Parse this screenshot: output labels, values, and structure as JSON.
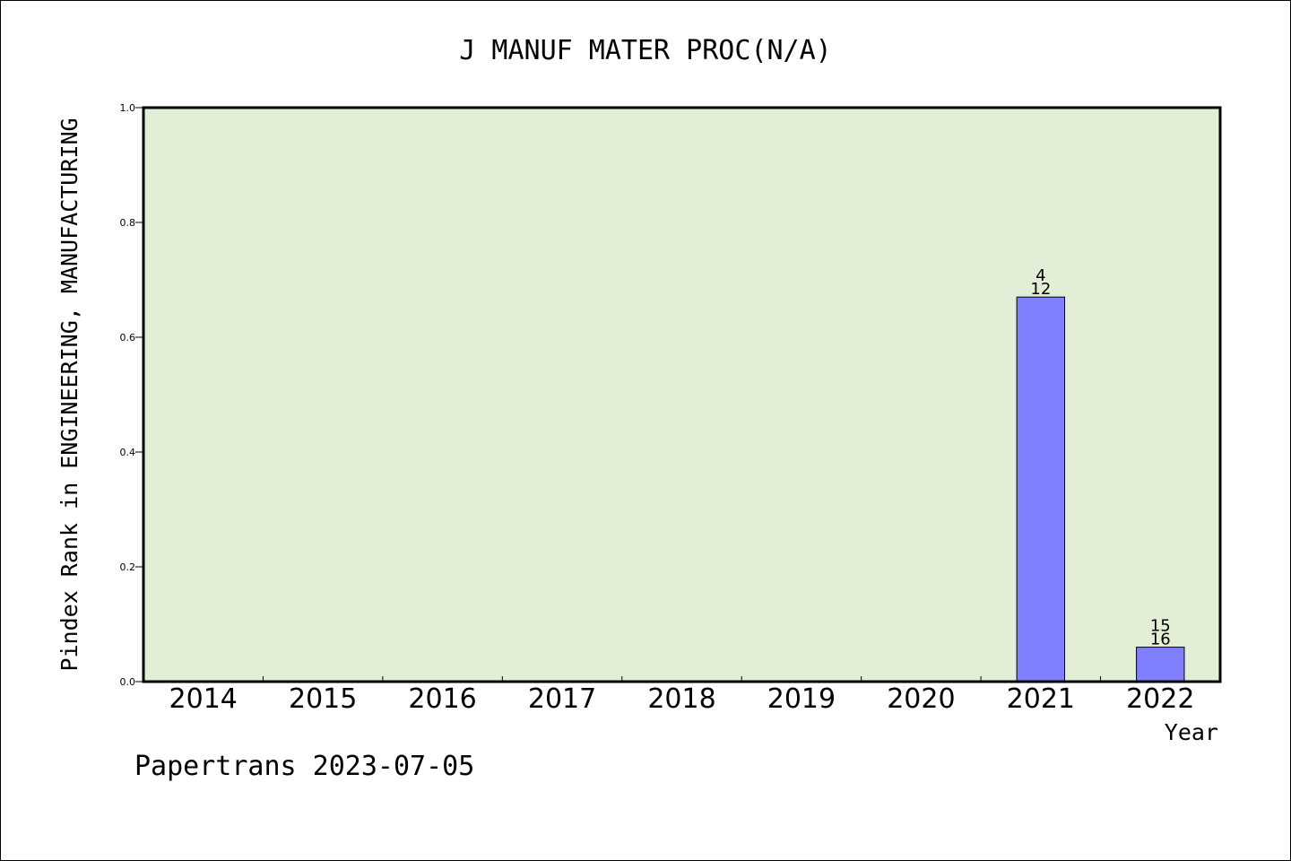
{
  "chart_data": {
    "type": "bar",
    "title": "J MANUF MATER PROC(N/A)",
    "xlabel": "Year",
    "ylabel": "Pindex Rank in ENGINEERING, MANUFACTURING",
    "categories": [
      "2014",
      "2015",
      "2016",
      "2017",
      "2018",
      "2019",
      "2020",
      "2021",
      "2022"
    ],
    "values": [
      null,
      null,
      null,
      null,
      null,
      null,
      null,
      0.67,
      0.06
    ],
    "bar_labels": [
      null,
      null,
      null,
      null,
      null,
      null,
      null,
      {
        "top": "4",
        "bottom": "12"
      },
      {
        "top": "15",
        "bottom": "16"
      }
    ],
    "ylim": [
      0.0,
      1.0
    ],
    "yticks": [
      "0.0",
      "0.2",
      "0.4",
      "0.6",
      "0.8",
      "1.0"
    ],
    "grid": false,
    "colors": {
      "plot_background": "#e2efd6",
      "bar_fill": "#8080ff",
      "bar_stroke": "#000000"
    }
  },
  "footer": {
    "credit": "Papertrans 2023-07-05"
  }
}
